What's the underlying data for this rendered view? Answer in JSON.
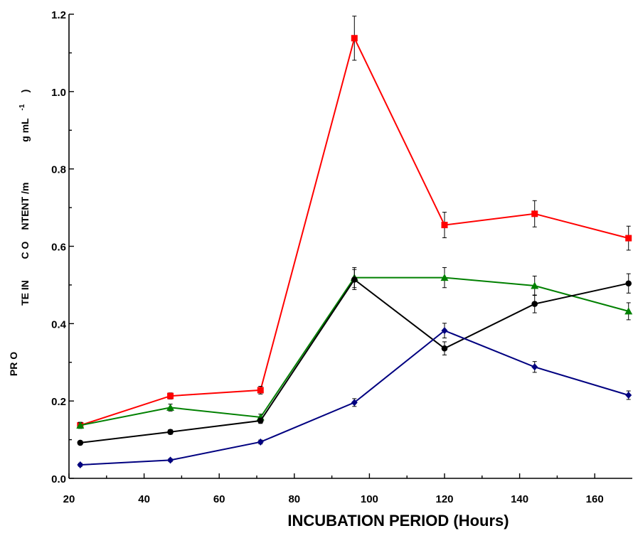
{
  "chart_data": {
    "type": "line",
    "xlabel": "INCUBATION PERIOD (Hours)",
    "ylabel": {
      "col1": "PR O",
      "col2": "TE IN",
      "col3": "C O",
      "col4": "NTENT /m",
      "col5": "g mL",
      "superscript": "-1",
      "paren": ")"
    },
    "xlim": [
      20,
      170
    ],
    "ylim": [
      0.0,
      1.2
    ],
    "x_ticks": [
      20,
      40,
      60,
      80,
      100,
      120,
      140,
      160
    ],
    "x_tick_labels": [
      "20",
      "40",
      "60",
      "80",
      "100",
      "120",
      "140",
      "160"
    ],
    "y_ticks": [
      0.0,
      0.2,
      0.4,
      0.6,
      0.8,
      1.0,
      1.2
    ],
    "y_tick_labels": [
      "0.0",
      "0.2",
      "0.4",
      "0.6",
      "0.8",
      "1.0",
      "1.2"
    ],
    "grid": false,
    "x": [
      23,
      47,
      71,
      96,
      120,
      144,
      169
    ],
    "series": [
      {
        "color": "#ff0000",
        "marker": "square",
        "values": [
          0.137,
          0.213,
          0.228,
          1.138,
          0.655,
          0.684,
          0.621
        ],
        "errors": [
          0.008,
          0.008,
          0.01,
          0.057,
          0.033,
          0.034,
          0.031
        ]
      },
      {
        "color": "#008000",
        "marker": "triangle",
        "values": [
          0.137,
          0.183,
          0.158,
          0.519,
          0.519,
          0.498,
          0.432
        ],
        "errors": [
          0.007,
          0.009,
          0.008,
          0.026,
          0.026,
          0.025,
          0.022
        ]
      },
      {
        "color": "#000000",
        "marker": "circle",
        "values": [
          0.092,
          0.12,
          0.149,
          0.514,
          0.336,
          0.451,
          0.504
        ],
        "errors": [
          0.005,
          0.006,
          0.007,
          0.026,
          0.017,
          0.023,
          0.025
        ]
      },
      {
        "color": "#000080",
        "marker": "diamond",
        "values": [
          0.035,
          0.047,
          0.094,
          0.196,
          0.382,
          0.288,
          0.215
        ],
        "errors": [
          0.004,
          0.004,
          0.005,
          0.01,
          0.019,
          0.014,
          0.011
        ]
      }
    ]
  }
}
